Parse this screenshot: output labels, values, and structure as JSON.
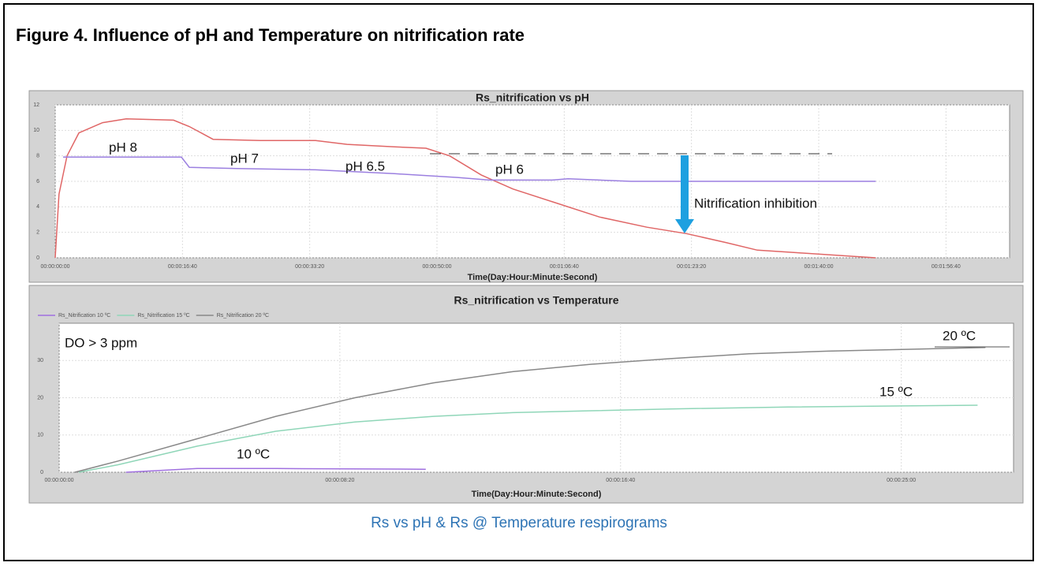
{
  "title": "Figure 4. Influence of pH and Temperature on nitrification rate",
  "caption": "Rs vs pH & Rs @ Temperature respirograms",
  "chart_data": [
    {
      "type": "line",
      "title": "Rs_nitrification vs pH",
      "x_label": "Time(Day:Hour:Minute:Second)",
      "xlim": [
        0,
        7500
      ],
      "ylim": [
        0,
        12
      ],
      "xticks": [
        {
          "value": 0,
          "label": "00:00:00:00"
        },
        {
          "value": 1000,
          "label": "00:00:16:40"
        },
        {
          "value": 2000,
          "label": "00:00:33:20"
        },
        {
          "value": 3000,
          "label": "00:00:50:00"
        },
        {
          "value": 4000,
          "label": "00:01:06:40"
        },
        {
          "value": 5000,
          "label": "00:01:23:20"
        },
        {
          "value": 6000,
          "label": "00:01:40:00"
        },
        {
          "value": 7000,
          "label": "00:01:56:40"
        }
      ],
      "yticks": [
        0,
        2,
        4,
        6,
        8,
        10,
        12
      ],
      "grid": true,
      "series": [
        {
          "color": "#e06666",
          "x": [
            0,
            30,
            93,
            186,
            372,
            558,
            930,
            1054,
            1240,
            1612,
            2046,
            2294,
            2666,
            2914,
            3100,
            3348,
            3596,
            3906,
            4278,
            4650,
            4960,
            5270,
            5518,
            5828,
            6138,
            6448
          ],
          "values": [
            0,
            5,
            8,
            9.8,
            10.6,
            10.9,
            10.8,
            10.3,
            9.3,
            9.2,
            9.2,
            8.9,
            8.7,
            8.6,
            8,
            6.5,
            5.4,
            4.4,
            3.2,
            2.4,
            1.9,
            1.2,
            0.6,
            0.4,
            0.2,
            0
          ]
        },
        {
          "color": "#9b7fe0",
          "x": [
            62,
            992,
            1054,
            1426,
            2046,
            2666,
            3162,
            3410,
            3906,
            4030,
            4526,
            6448
          ],
          "values": [
            7.9,
            7.9,
            7.1,
            7,
            6.9,
            6.6,
            6.3,
            6.1,
            6.1,
            6.2,
            6,
            6
          ]
        }
      ],
      "annotations": [
        "pH 8",
        "pH 7",
        "pH 6.5",
        "pH 6",
        "Nitrification inhibition"
      ]
    },
    {
      "type": "line",
      "title": "Rs_nitrification vs Temperature",
      "x_label": "Time(Day:Hour:Minute:Second)",
      "xlim": [
        0,
        1700
      ],
      "ylim": [
        0,
        40
      ],
      "xticks": [
        {
          "value": 0,
          "label": "00:00:00:00"
        },
        {
          "value": 500,
          "label": "00:00:08:20"
        },
        {
          "value": 1000,
          "label": "00:00:16:40"
        },
        {
          "value": 1500,
          "label": "00:00:25:00"
        }
      ],
      "yticks": [
        0,
        10,
        20,
        30
      ],
      "grid": true,
      "series": [
        {
          "name": "Rs_Nitrification 10 ºC",
          "color": "#a070e0",
          "x": [
            119,
            246,
            386,
            653
          ],
          "values": [
            0,
            1,
            1,
            0.8
          ]
        },
        {
          "name": "Rs_Nitrification 15 ºC",
          "color": "#8fd6b8",
          "x": [
            35,
            105,
            246,
            386,
            527,
            667,
            808,
            948,
            1089,
            1299,
            1636
          ],
          "values": [
            0,
            2,
            7,
            11,
            13.5,
            15,
            16,
            16.5,
            17,
            17.5,
            18
          ]
        },
        {
          "name": "Rs_Nitrification 20 ºC",
          "color": "#888888",
          "x": [
            28,
            105,
            246,
            386,
            527,
            667,
            808,
            948,
            1089,
            1229,
            1369,
            1510,
            1650
          ],
          "values": [
            0,
            3,
            9,
            15,
            20,
            24,
            27,
            29,
            30.5,
            31.8,
            32.5,
            33,
            33.5
          ]
        }
      ],
      "annotations": [
        "DO > 3 ppm",
        "20 ºC",
        "15 ºC",
        "10 ºC"
      ]
    }
  ]
}
